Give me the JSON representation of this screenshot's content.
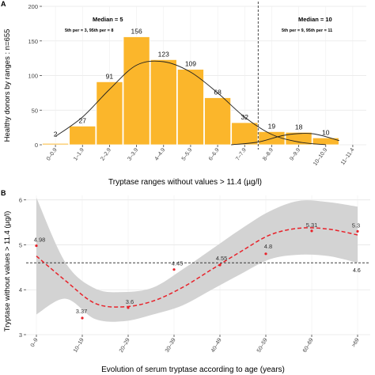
{
  "chart_data": [
    {
      "panel": "A",
      "type": "bar",
      "xlabel": "Tryptase ranges without values > 11.4 (µg/l)",
      "ylabel": "Healthy donors by ranges : n=655",
      "ylim": [
        0,
        200
      ],
      "yticks": [
        0,
        50,
        100,
        150,
        200
      ],
      "grid": true,
      "categories": [
        "0–0.9",
        "1–1.9",
        "2–2.9",
        "3–3.9",
        "4–4.9",
        "5–5.9",
        "6–6.9",
        "7–7.9",
        "8–8.9",
        "9–9.9",
        "10–10.9",
        "11–11.4"
      ],
      "values": [
        2,
        27,
        91,
        156,
        123,
        109,
        68,
        32,
        19,
        18,
        10,
        0
      ],
      "value_labels": [
        "2",
        "27",
        "91",
        "156",
        "123",
        "109",
        "68",
        "32",
        "19",
        "18",
        "10",
        ""
      ],
      "bar_color": "#FBB62B",
      "divider_after": 7.5,
      "fit_curve_1": {
        "x": [
          0,
          1,
          2,
          3,
          4,
          5,
          6,
          7,
          8,
          9,
          10
        ],
        "y": [
          12,
          40,
          80,
          115,
          120,
          105,
          75,
          40,
          15,
          4,
          0
        ]
      },
      "fit_curve_2": {
        "x": [
          6.5,
          7.5,
          8.5,
          9.5,
          10.5
        ],
        "y": [
          0,
          4,
          14,
          16,
          6
        ]
      },
      "annotations": {
        "left_median": "Median = 5",
        "left_percentiles": "5th per = 3,  95th per = 8",
        "right_median": "Median = 10",
        "right_percentiles": "5th per = 9,  95th per = 11"
      }
    },
    {
      "panel": "B",
      "type": "scatter",
      "xlabel": "Evolution of serum tryptase according to age (years)",
      "ylabel": "Tryptase without values > 11.4 (µg/l)",
      "ylim": [
        3,
        6.1
      ],
      "yticks": [
        3,
        4,
        5,
        6
      ],
      "grid": true,
      "categories": [
        "0–9",
        "10–19",
        "20–29",
        "30–39",
        "40–49",
        "50–59",
        "60–69",
        ">69"
      ],
      "values": [
        4.98,
        3.37,
        3.6,
        4.45,
        4.55,
        4.8,
        5.31,
        5.3
      ],
      "value_labels": [
        "4.98",
        "3.37",
        "3.6",
        "4.45",
        "4.55",
        "4.8",
        "5.31",
        "5.3"
      ],
      "reference_line": 4.6,
      "reference_label": "4.6",
      "trend_y": [
        4.75,
        4.2,
        3.7,
        3.62,
        3.75,
        4.05,
        4.45,
        4.85,
        5.22,
        5.37,
        5.35,
        5.22
      ],
      "ci_upper": [
        6.05,
        4.6,
        4.03,
        3.95,
        4.05,
        4.45,
        4.9,
        5.35,
        5.75,
        5.98,
        5.95,
        5.85
      ],
      "ci_lower": [
        3.45,
        3.8,
        3.35,
        3.3,
        3.45,
        3.65,
        4.0,
        4.35,
        4.68,
        4.78,
        4.75,
        4.6
      ],
      "point_color": "#E8222A",
      "band_color": "#D3D3D3"
    }
  ],
  "panel_labels": [
    "A",
    "B"
  ]
}
